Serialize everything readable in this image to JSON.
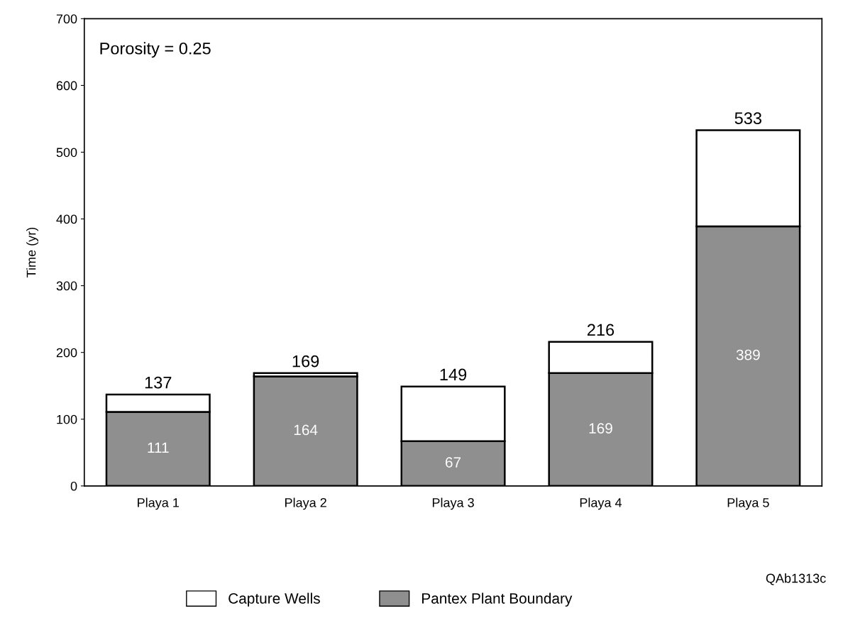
{
  "chart_data": {
    "type": "bar",
    "stacked": true,
    "ylabel": "Time (yr)",
    "categories": [
      "Playa 1",
      "Playa 2",
      "Playa 3",
      "Playa 4",
      "Playa 5"
    ],
    "series": [
      {
        "name": "Pantex Plant Boundary",
        "color": "#8f8f8f",
        "values": [
          111,
          164,
          67,
          169,
          389
        ],
        "value_labels": [
          "111",
          "164",
          "67",
          "169",
          "389"
        ]
      },
      {
        "name": "Capture Wells",
        "color": "#ffffff",
        "values": [
          26,
          5,
          82,
          47,
          144
        ]
      }
    ],
    "totals": [
      "137",
      "169",
      "149",
      "216",
      "533"
    ],
    "ylim": [
      0,
      700
    ],
    "yticks": [
      0,
      100,
      200,
      300,
      400,
      500,
      600,
      700
    ],
    "grid": false,
    "legend": "bottom",
    "annotations": [
      "Porosity = 0.25",
      "QAb1313c"
    ]
  }
}
